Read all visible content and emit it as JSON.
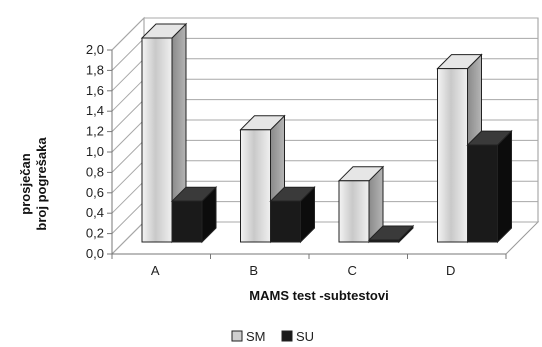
{
  "chart_data": {
    "type": "bar",
    "style": "3d-clustered-column",
    "categories": [
      "A",
      "B",
      "C",
      "D"
    ],
    "series": [
      {
        "name": "SM",
        "values": [
          2.0,
          1.1,
          0.6,
          1.7
        ],
        "color": "#d8d8d8"
      },
      {
        "name": "SU",
        "values": [
          0.4,
          0.4,
          0.02,
          0.95
        ],
        "color": "#1a1a1a"
      }
    ],
    "y_ticks": [
      "0,0",
      "0,2",
      "0,4",
      "0,6",
      "0,8",
      "1,0",
      "1,2",
      "1,4",
      "1,6",
      "1,8",
      "2,0"
    ],
    "ylim": [
      0,
      2.0
    ],
    "xlabel": "MAMS test -subtestovi",
    "ylabel_line1": "prosječan",
    "ylabel_line2": "broj pogrešaka",
    "grid": true,
    "legend_position": "bottom"
  }
}
